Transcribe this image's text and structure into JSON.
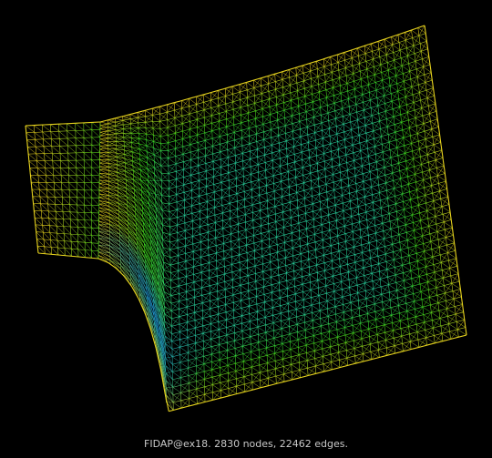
{
  "caption": "FIDAP@ex18. 2830 nodes, 22462 edges.",
  "colors": {
    "background": "#000000",
    "mesh_edge_yellow": "#e6d21e",
    "mesh_mid_green": "#3cdc1e",
    "mesh_interior_cyan": "#2ad6a0",
    "mesh_inner_blue": "#1e8cdc",
    "caption_text": "#c8c8c8"
  }
}
